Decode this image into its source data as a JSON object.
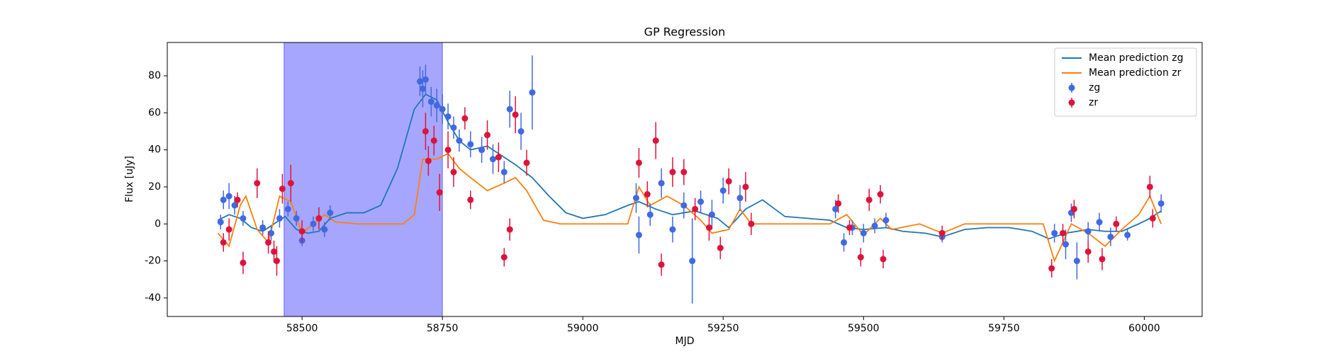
{
  "chart_data": {
    "type": "scatter",
    "title": "GP Regression",
    "xlabel": "MJD",
    "ylabel": "Flux [uJy]",
    "xlim": [
      58260,
      60103
    ],
    "ylim": [
      -50,
      98
    ],
    "xticks": [
      58500,
      58750,
      59000,
      59250,
      59500,
      59750,
      60000
    ],
    "yticks": [
      -40,
      -20,
      0,
      20,
      40,
      60,
      80
    ],
    "legend": "upper right",
    "span": [
      58468,
      58750
    ],
    "span_color": "#0000ff",
    "lines": [
      {
        "name": "Mean prediction zg",
        "color": "#1f77b4",
        "x": [
          58350,
          58370,
          58390,
          58410,
          58430,
          58450,
          58470,
          58490,
          58510,
          58530,
          58550,
          58580,
          58610,
          58640,
          58670,
          58700,
          58720,
          58740,
          58760,
          58780,
          58800,
          58830,
          58850,
          58880,
          58910,
          58940,
          58970,
          59000,
          59040,
          59080,
          59100,
          59130,
          59160,
          59200,
          59240,
          59260,
          59290,
          59320,
          59360,
          59400,
          59440,
          59470,
          59500,
          59540,
          59570,
          59610,
          59640,
          59680,
          59720,
          59760,
          59800,
          59830,
          59860,
          59900,
          59930,
          59960,
          59990,
          60010,
          60030
        ],
        "values": [
          2,
          5,
          3,
          -2,
          -4,
          0,
          4,
          -3,
          -5,
          -4,
          3,
          6,
          6,
          10,
          30,
          62,
          70,
          67,
          55,
          45,
          40,
          42,
          38,
          32,
          25,
          15,
          6,
          3,
          5,
          10,
          12,
          8,
          5,
          7,
          3,
          -2,
          8,
          13,
          4,
          3,
          2,
          -2,
          -3,
          -2,
          -4,
          -5,
          -7,
          -3,
          -2,
          -2,
          -4,
          -8,
          -5,
          -3,
          -4,
          -4,
          0,
          3,
          7
        ]
      },
      {
        "name": "Mean prediction zr",
        "color": "#ff7f0e",
        "x": [
          58350,
          58370,
          58390,
          58400,
          58420,
          58440,
          58460,
          58480,
          58500,
          58520,
          58540,
          58560,
          58600,
          58680,
          58700,
          58715,
          58740,
          58760,
          58780,
          58800,
          58830,
          58860,
          58880,
          58900,
          58930,
          58960,
          59080,
          59100,
          59120,
          59150,
          59180,
          59210,
          59230,
          59260,
          59280,
          59300,
          59440,
          59470,
          59500,
          59530,
          59550,
          59600,
          59640,
          59680,
          59820,
          59840,
          59870,
          59900,
          59930,
          59960,
          59990,
          60010,
          60030
        ],
        "values": [
          -5,
          -12,
          10,
          15,
          -3,
          -10,
          15,
          12,
          -5,
          0,
          5,
          1,
          0,
          0,
          5,
          35,
          35,
          38,
          30,
          25,
          18,
          22,
          25,
          18,
          2,
          0,
          0,
          20,
          10,
          15,
          10,
          2,
          -5,
          -3,
          8,
          0,
          0,
          5,
          -6,
          3,
          -3,
          0,
          -5,
          0,
          0,
          -20,
          0,
          -5,
          -12,
          -3,
          5,
          15,
          0
        ]
      }
    ],
    "series": [
      {
        "name": "zg",
        "color": "#4169e1",
        "x": [
          58355,
          58360,
          58370,
          58380,
          58395,
          58430,
          58445,
          58460,
          58475,
          58490,
          58500,
          58520,
          58540,
          58550,
          58710,
          58715,
          58720,
          58730,
          58740,
          58750,
          58760,
          58770,
          58780,
          58800,
          58820,
          58840,
          58860,
          58870,
          58890,
          58910,
          59095,
          59100,
          59120,
          59140,
          59160,
          59180,
          59195,
          59210,
          59230,
          59250,
          59280,
          59450,
          59465,
          59480,
          59500,
          59520,
          59540,
          59640,
          59840,
          59860,
          59870,
          59880,
          59900,
          59920,
          59940,
          59970,
          60030
        ],
        "values": [
          1,
          13,
          15,
          10,
          3,
          -2,
          -5,
          3,
          8,
          3,
          -9,
          0,
          -3,
          6,
          77,
          73,
          78,
          66,
          64,
          62,
          58,
          52,
          45,
          43,
          40,
          35,
          28,
          62,
          50,
          71,
          14,
          -6,
          5,
          22,
          -3,
          10,
          -20,
          12,
          5,
          18,
          14,
          8,
          -10,
          -2,
          -5,
          -1,
          2,
          -7,
          -5,
          -11,
          6,
          -20,
          -4,
          1,
          -7,
          -6,
          11
        ],
        "errors": [
          4,
          5,
          7,
          5,
          4,
          4,
          4,
          5,
          4,
          4,
          3,
          4,
          4,
          4,
          8,
          10,
          8,
          8,
          9,
          8,
          7,
          6,
          6,
          7,
          7,
          8,
          6,
          10,
          10,
          20,
          8,
          10,
          6,
          8,
          7,
          7,
          23,
          6,
          8,
          7,
          7,
          5,
          5,
          4,
          5,
          4,
          4,
          3,
          5,
          8,
          5,
          10,
          5,
          5,
          5,
          3,
          5
        ]
      },
      {
        "name": "zr",
        "color": "#dc143c",
        "x": [
          58360,
          58370,
          58385,
          58395,
          58420,
          58440,
          58450,
          58455,
          58465,
          58480,
          58500,
          58530,
          58720,
          58725,
          58735,
          58745,
          58760,
          58770,
          58790,
          58800,
          58830,
          58850,
          58860,
          58870,
          58880,
          58900,
          59100,
          59115,
          59130,
          59140,
          59160,
          59180,
          59200,
          59225,
          59245,
          59260,
          59290,
          59300,
          59455,
          59475,
          59495,
          59510,
          59530,
          59535,
          59640,
          59835,
          59855,
          59875,
          59900,
          59925,
          59950,
          60010,
          60015
        ],
        "values": [
          -10,
          -3,
          13,
          -21,
          22,
          -10,
          -15,
          -20,
          19,
          22,
          -4,
          3,
          50,
          34,
          45,
          17,
          40,
          28,
          57,
          13,
          48,
          36,
          -18,
          -3,
          59,
          33,
          33,
          16,
          45,
          -22,
          28,
          28,
          8,
          -2,
          -13,
          23,
          20,
          0,
          11,
          -2,
          -18,
          13,
          16,
          -19,
          -5,
          -24,
          -5,
          8,
          -15,
          -19,
          0,
          20,
          3
        ],
        "errors": [
          5,
          6,
          4,
          6,
          8,
          6,
          6,
          8,
          8,
          10,
          6,
          6,
          10,
          8,
          8,
          10,
          10,
          8,
          6,
          5,
          8,
          8,
          5,
          6,
          10,
          7,
          8,
          7,
          10,
          6,
          8,
          7,
          6,
          7,
          6,
          7,
          8,
          6,
          5,
          4,
          5,
          6,
          5,
          5,
          4,
          5,
          5,
          5,
          6,
          6,
          4,
          6,
          5
        ]
      }
    ]
  }
}
